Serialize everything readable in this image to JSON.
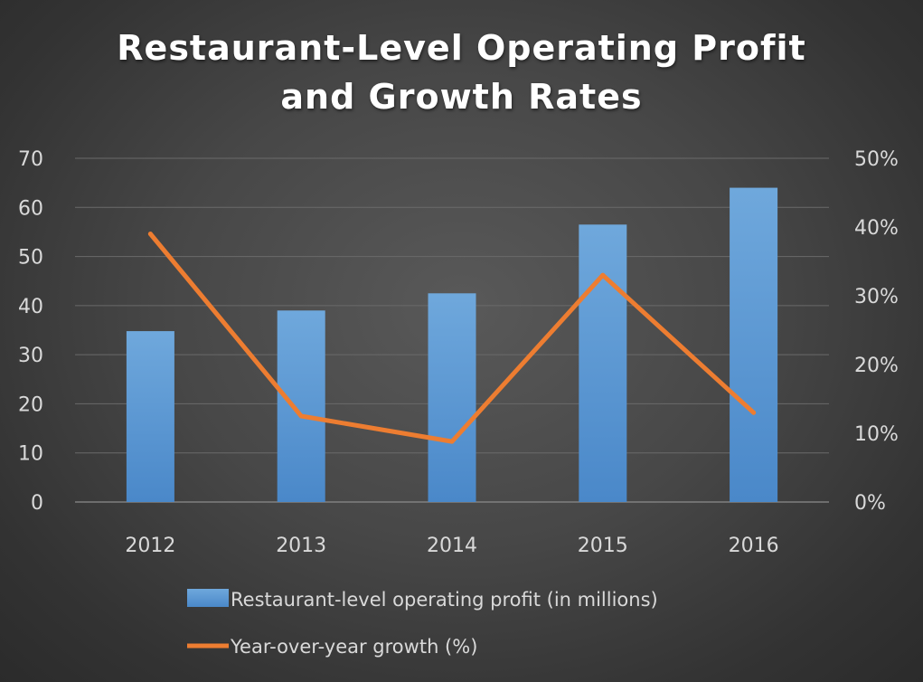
{
  "chart_data": {
    "type": "bar",
    "title": "Restaurant-Level Operating Profit and Growth Rates",
    "title_lines": [
      "Restaurant-Level Operating Profit",
      "and Growth Rates"
    ],
    "categories": [
      "2012",
      "2013",
      "2014",
      "2015",
      "2016"
    ],
    "series": [
      {
        "name": "Restaurant-level operating profit (in millions)",
        "type": "bar",
        "axis": "left",
        "values": [
          34.8,
          39,
          42.5,
          56.5,
          64
        ],
        "color": "#5b9bd5"
      },
      {
        "name": "Year-over-year growth (%)",
        "type": "line",
        "axis": "right",
        "values": [
          39,
          12.5,
          8.8,
          33,
          13
        ],
        "color": "#ed7d31"
      }
    ],
    "ylim_left": [
      0,
      70
    ],
    "yticks_left": [
      "0",
      "10",
      "20",
      "30",
      "40",
      "50",
      "60",
      "70"
    ],
    "ylim_right": [
      0,
      50
    ],
    "yticks_right": [
      "0%",
      "10%",
      "20%",
      "30%",
      "40%",
      "50%"
    ],
    "grid": true,
    "legend_position": "bottom",
    "xlabel": "",
    "ylabel": ""
  }
}
